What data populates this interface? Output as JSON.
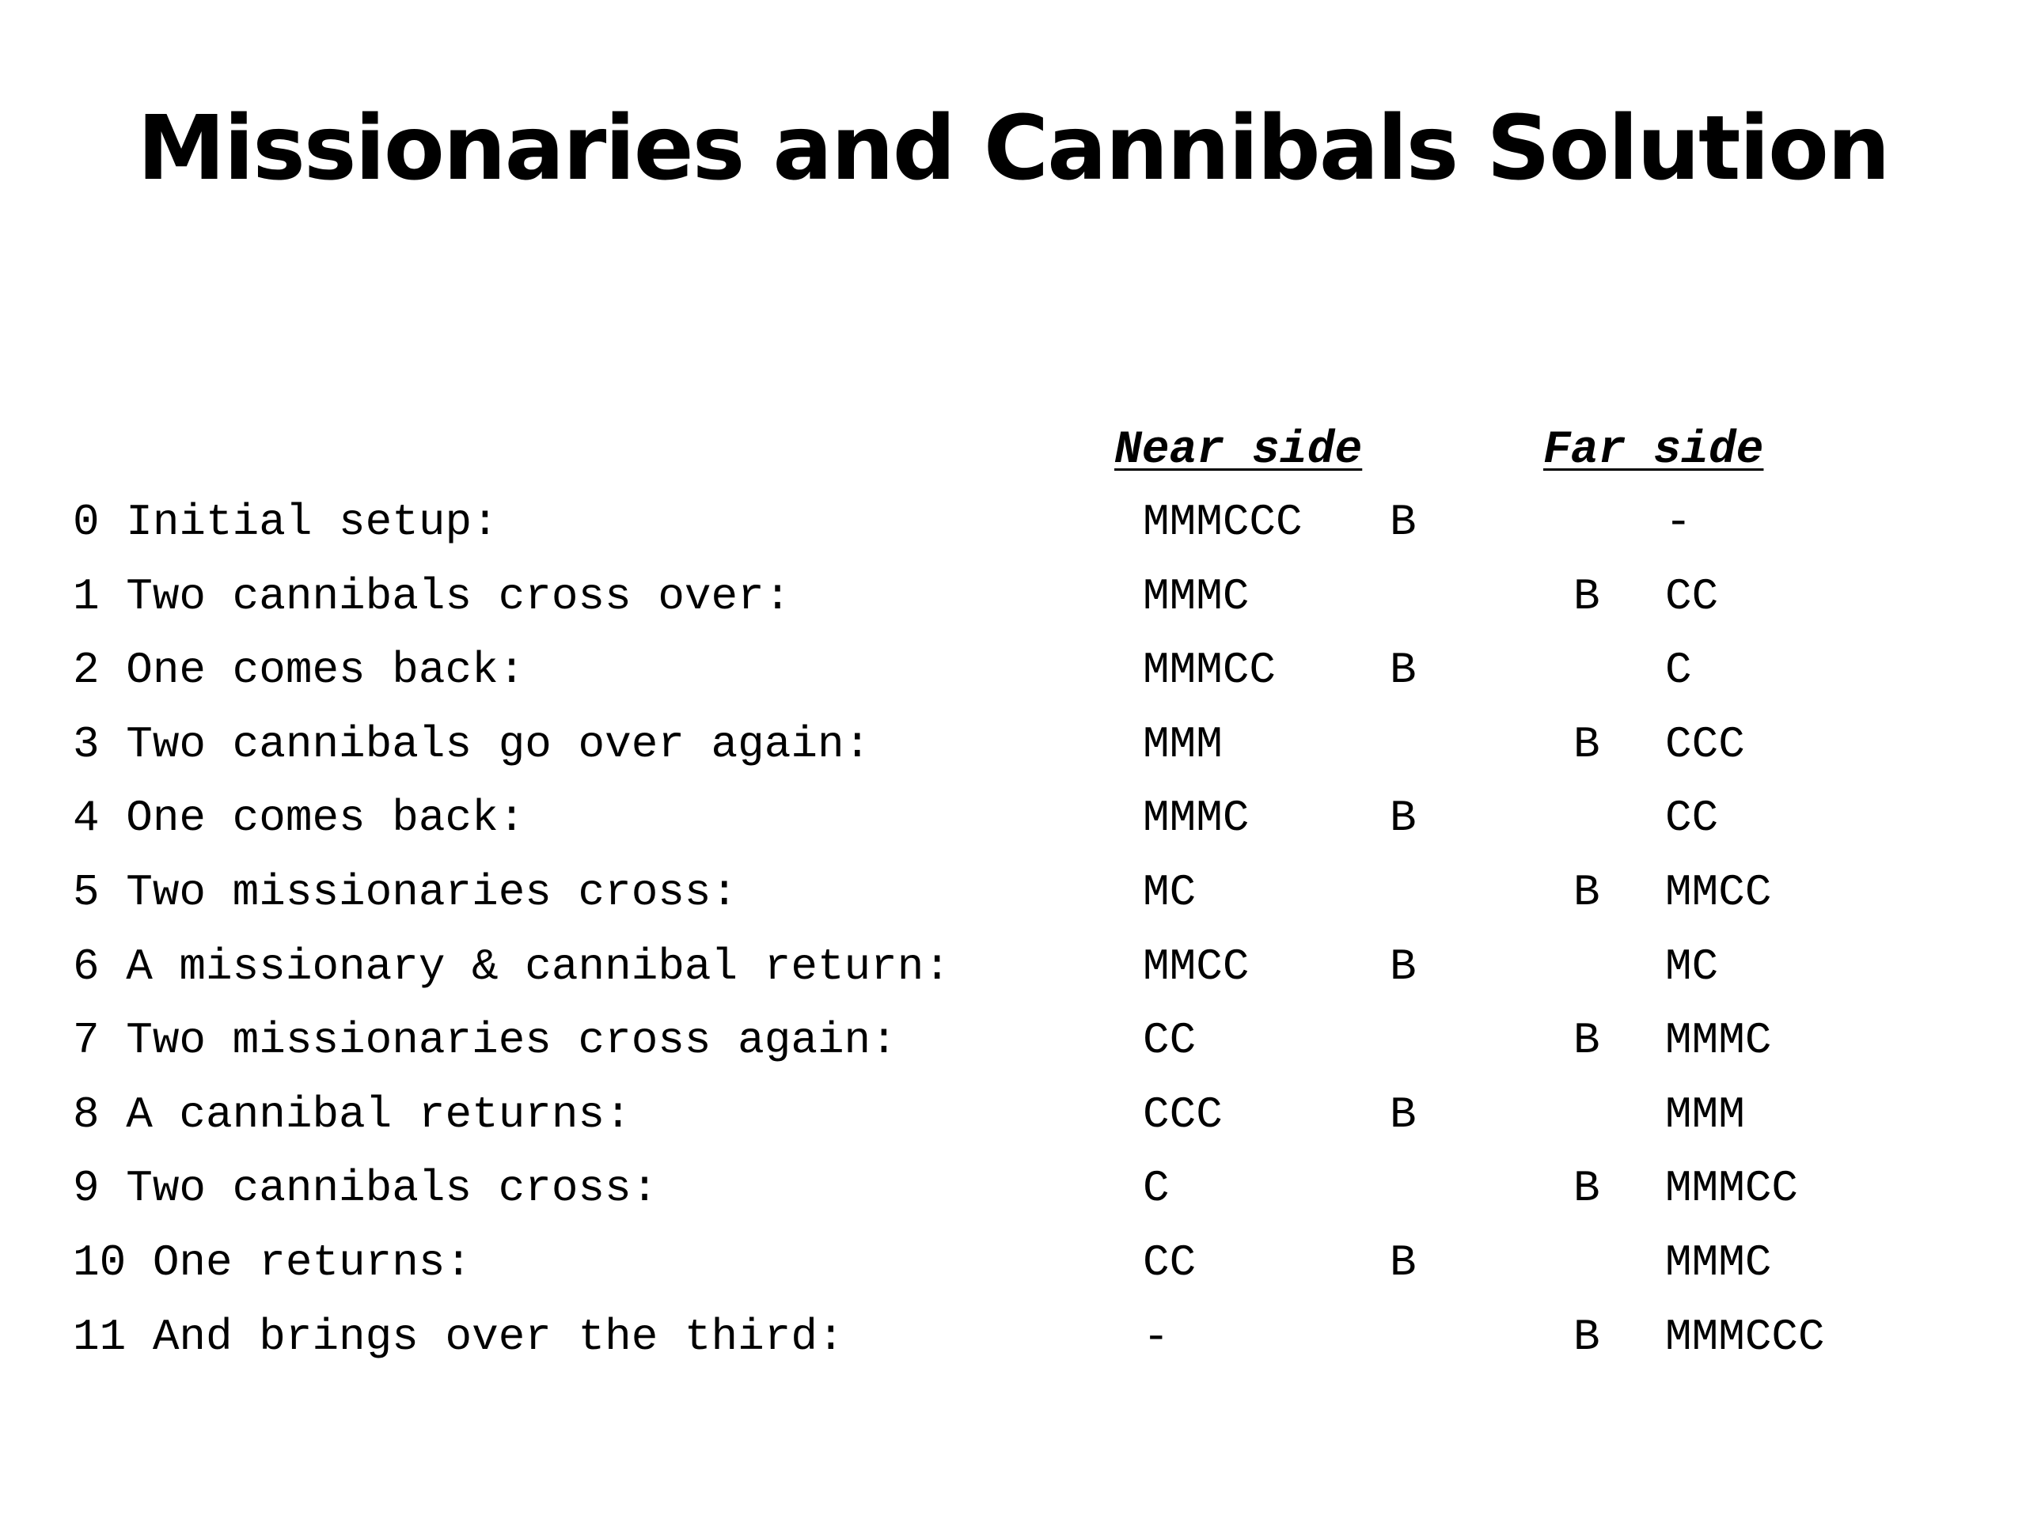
{
  "title": "Missionaries and Cannibals Solution",
  "headers": {
    "near": "Near side",
    "far": "Far side"
  },
  "rows": [
    {
      "desc": "0 Initial setup:",
      "near": "MMMCCC",
      "near_boat": "B",
      "far_boat": "",
      "far": "-"
    },
    {
      "desc": "1 Two cannibals cross over:",
      "near": "MMMC",
      "near_boat": "",
      "far_boat": "B",
      "far": "CC"
    },
    {
      "desc": "2 One comes back:",
      "near": "MMMCC",
      "near_boat": "B",
      "far_boat": "",
      "far": "C"
    },
    {
      "desc": "3 Two cannibals go over again:",
      "near": "MMM",
      "near_boat": "",
      "far_boat": "B",
      "far": "CCC"
    },
    {
      "desc": "4 One comes back:",
      "near": "MMMC",
      "near_boat": "B",
      "far_boat": "",
      "far": "CC"
    },
    {
      "desc": "5 Two missionaries cross:",
      "near": "MC",
      "near_boat": "",
      "far_boat": "B",
      "far": "MMCC"
    },
    {
      "desc": "6 A missionary & cannibal return:",
      "near": "MMCC",
      "near_boat": "B",
      "far_boat": "",
      "far": "MC"
    },
    {
      "desc": "7 Two missionaries cross again:",
      "near": "CC",
      "near_boat": "",
      "far_boat": "B",
      "far": "MMMC"
    },
    {
      "desc": "8 A cannibal returns:",
      "near": "CCC",
      "near_boat": "B",
      "far_boat": "",
      "far": "MMM"
    },
    {
      "desc": "9 Two cannibals cross:",
      "near": "C",
      "near_boat": "",
      "far_boat": "B",
      "far": "MMMCC"
    },
    {
      "desc": "10 One returns:",
      "near": "CC",
      "near_boat": "B",
      "far_boat": "",
      "far": "MMMC"
    },
    {
      "desc": "11 And brings over the third:",
      "near": "-",
      "near_boat": "",
      "far_boat": "B",
      "far": "MMMCCC"
    }
  ]
}
